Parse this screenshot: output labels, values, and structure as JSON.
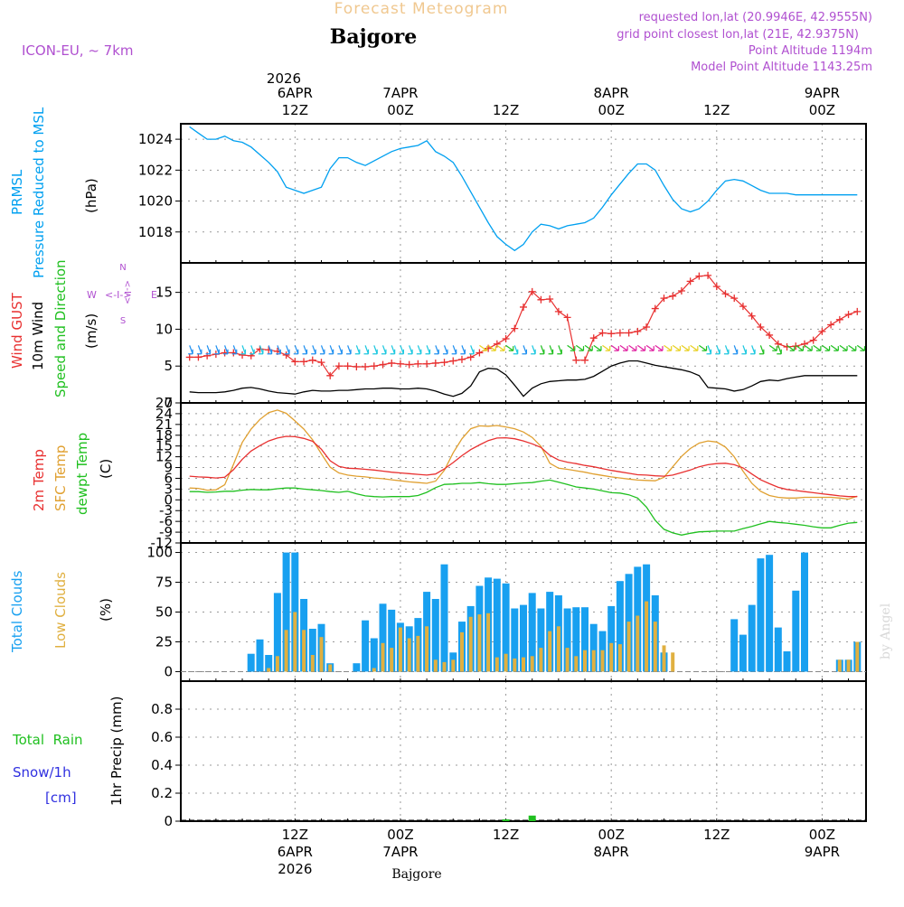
{
  "header": {
    "product": "Forecast Meteogram",
    "location": "Bajgore",
    "model": "ICON-EU, ~ 7km",
    "requested": "requested lon,lat (20.9946E, 42.9555N)",
    "grid_point": "grid point closest lon,lat (21E, 42.9375N)",
    "point_altitude": "Point Altitude 1194m",
    "model_altitude": "Model Point Altitude 1143.25m"
  },
  "time_axis": {
    "top_year": "2026",
    "top_labels": [
      {
        "t": 12,
        "l1": "6APR",
        "l2": "12Z"
      },
      {
        "t": 24,
        "l1": "7APR",
        "l2": "00Z"
      },
      {
        "t": 36,
        "l1": "",
        "l2": "12Z"
      },
      {
        "t": 48,
        "l1": "8APR",
        "l2": "00Z"
      },
      {
        "t": 60,
        "l1": "",
        "l2": "12Z"
      },
      {
        "t": 72,
        "l1": "9APR",
        "l2": "00Z"
      }
    ],
    "bottom_labels": [
      {
        "t": 12,
        "l1": "12Z",
        "l2": "6APR",
        "l3": "2026"
      },
      {
        "t": 24,
        "l1": "00Z",
        "l2": "7APR",
        "l3": ""
      },
      {
        "t": 36,
        "l1": "12Z",
        "l2": "",
        "l3": ""
      },
      {
        "t": 48,
        "l1": "00Z",
        "l2": "8APR",
        "l3": ""
      },
      {
        "t": 60,
        "l1": "12Z",
        "l2": "",
        "l3": ""
      },
      {
        "t": 72,
        "l1": "00Z",
        "l2": "9APR",
        "l3": ""
      }
    ],
    "footer_label": "Bajgore",
    "credit": "by Angel"
  },
  "panel_labels": {
    "pressure": {
      "label1": "PRMSL",
      "label2": "Pressure Reduced to MSL",
      "unit": "(hPa)"
    },
    "wind": {
      "gust": "Wind GUST",
      "wind10": "10m Wind",
      "dir": "Speed and Direction",
      "unit": "(m/s)",
      "compass_n": "N",
      "compass_w": "W",
      "compass_e": "E",
      "compass_s": "S",
      "compass_ns": "<-I->"
    },
    "temp": {
      "t2m": "2m Temp",
      "sfc": "SFC Temp",
      "dew": "dewpt Temp",
      "unit": "(C)"
    },
    "clouds": {
      "total": "Total Clouds",
      "low": "Low Clouds",
      "unit": "(%)"
    },
    "precip": {
      "rain": "Total  Rain",
      "snow": "Snow/1h",
      "snow_unit": "[cm]",
      "unit": "1hr Precip (mm)"
    }
  },
  "colors": {
    "pressure": "#00a0f0",
    "gust": "#e83030",
    "wind": "#000000",
    "t2m": "#e83030",
    "sfc": "#e0a030",
    "dew": "#20c020",
    "total_clouds": "#18a0f0",
    "low_clouds": "#e0b040",
    "rain": "#20c020",
    "snow": "#3030e0",
    "header_purple": "#b050d0",
    "header_gold": "#f0c890"
  },
  "chart_data": [
    {
      "type": "line",
      "title": "PRMSL Pressure Reduced to MSL",
      "ylabel": "(hPa)",
      "ylim": [
        1016,
        1025
      ],
      "yticks": [
        1018,
        1020,
        1022,
        1024
      ],
      "xlim": [
        -1,
        78
      ],
      "x": [
        0,
        1,
        2,
        3,
        4,
        5,
        6,
        7,
        8,
        9,
        10,
        11,
        12,
        13,
        14,
        15,
        16,
        17,
        18,
        19,
        20,
        21,
        22,
        23,
        24,
        25,
        26,
        27,
        28,
        29,
        30,
        31,
        32,
        33,
        34,
        35,
        36,
        37,
        38,
        39,
        40,
        41,
        42,
        43,
        44,
        45,
        46,
        47,
        48,
        49,
        50,
        51,
        52,
        53,
        54,
        55,
        56,
        57,
        58,
        59,
        60,
        61,
        62,
        63,
        64,
        65,
        66,
        67,
        68,
        69,
        70,
        71,
        72,
        73,
        74,
        75,
        76
      ],
      "series": [
        {
          "name": "PRMSL",
          "values": [
            1024.8,
            1024.4,
            1024.0,
            1024.0,
            1024.2,
            1023.9,
            1023.8,
            1023.5,
            1023.0,
            1022.5,
            1021.9,
            1020.9,
            1020.7,
            1020.5,
            1020.7,
            1020.9,
            1022.1,
            1022.8,
            1022.8,
            1022.5,
            1022.3,
            1022.6,
            1022.9,
            1023.2,
            1023.4,
            1023.5,
            1023.6,
            1023.9,
            1023.2,
            1022.9,
            1022.5,
            1021.6,
            1020.6,
            1019.6,
            1018.6,
            1017.7,
            1017.2,
            1016.8,
            1017.2,
            1018.0,
            1018.5,
            1018.4,
            1018.2,
            1018.4,
            1018.5,
            1018.6,
            1018.9,
            1019.6,
            1020.4,
            1021.1,
            1021.8,
            1022.4,
            1022.4,
            1022.0,
            1021.0,
            1020.1,
            1019.5,
            1019.3,
            1019.5,
            1020.0,
            1020.7,
            1021.3,
            1021.4,
            1021.3,
            1021.0,
            1020.7,
            1020.5,
            1020.5,
            1020.5,
            1020.4,
            1020.4,
            1020.4,
            1020.4,
            1020.4,
            1020.4,
            1020.4,
            1020.4
          ]
        }
      ]
    },
    {
      "type": "line",
      "title": "Wind GUST / 10m Wind Speed and Direction",
      "ylabel": "(m/s)",
      "ylim": [
        0,
        19
      ],
      "yticks": [
        0,
        5,
        10,
        15
      ],
      "x": [
        0,
        1,
        2,
        3,
        4,
        5,
        6,
        7,
        8,
        9,
        10,
        11,
        12,
        13,
        14,
        15,
        16,
        17,
        18,
        19,
        20,
        21,
        22,
        23,
        24,
        25,
        26,
        27,
        28,
        29,
        30,
        31,
        32,
        33,
        34,
        35,
        36,
        37,
        38,
        39,
        40,
        41,
        42,
        43,
        44,
        45,
        46,
        47,
        48,
        49,
        50,
        51,
        52,
        53,
        54,
        55,
        56,
        57,
        58,
        59,
        60,
        61,
        62,
        63,
        64,
        65,
        66,
        67,
        68,
        69,
        70,
        71,
        72,
        73,
        74,
        75,
        76
      ],
      "series": [
        {
          "name": "Wind GUST",
          "values": [
            6.2,
            6.2,
            6.4,
            6.6,
            6.8,
            6.8,
            6.5,
            6.4,
            7.3,
            7.2,
            7.0,
            6.5,
            5.6,
            5.6,
            5.8,
            5.5,
            3.7,
            5.0,
            5.0,
            4.9,
            4.9,
            5.0,
            5.2,
            5.4,
            5.3,
            5.2,
            5.3,
            5.3,
            5.4,
            5.5,
            5.7,
            5.9,
            6.2,
            6.8,
            7.4,
            8.0,
            8.7,
            10.1,
            13.0,
            15.1,
            14.0,
            14.1,
            12.4,
            11.6,
            5.8,
            5.8,
            8.8,
            9.5,
            9.4,
            9.5,
            9.5,
            9.7,
            10.3,
            12.8,
            14.2,
            14.5,
            15.2,
            16.5,
            17.2,
            17.3,
            15.8,
            14.8,
            14.2,
            13.1,
            11.8,
            10.3,
            9.2,
            8.0,
            7.6,
            7.7,
            8.0,
            8.5,
            9.7,
            10.6,
            11.3,
            12.0,
            12.4
          ]
        },
        {
          "name": "10m Wind",
          "values": [
            1.5,
            1.4,
            1.4,
            1.4,
            1.5,
            1.7,
            2.0,
            2.1,
            1.9,
            1.6,
            1.4,
            1.3,
            1.2,
            1.5,
            1.7,
            1.6,
            1.6,
            1.7,
            1.7,
            1.8,
            1.9,
            1.9,
            2.0,
            2.0,
            1.9,
            1.9,
            2.0,
            1.9,
            1.6,
            1.2,
            0.9,
            1.3,
            2.3,
            4.2,
            4.7,
            4.6,
            3.8,
            2.4,
            0.9,
            2.0,
            2.6,
            2.9,
            3.0,
            3.1,
            3.1,
            3.2,
            3.6,
            4.3,
            5.0,
            5.4,
            5.7,
            5.7,
            5.4,
            5.1,
            4.9,
            4.7,
            4.5,
            4.2,
            3.7,
            2.1,
            2.0,
            1.9,
            1.6,
            1.8,
            2.3,
            2.9,
            3.1,
            3.0,
            3.3,
            3.5,
            3.7,
            3.7,
            3.7,
            3.7,
            3.7,
            3.7,
            3.7
          ]
        }
      ]
    },
    {
      "type": "line",
      "title": "2m Temp / SFC Temp / dewpt Temp",
      "ylabel": "(C)",
      "ylim": [
        -12,
        27
      ],
      "yticks": [
        -12,
        -9,
        -6,
        -3,
        0,
        3,
        6,
        9,
        12,
        15,
        18,
        21,
        24,
        27
      ],
      "x": [
        0,
        1,
        2,
        3,
        4,
        5,
        6,
        7,
        8,
        9,
        10,
        11,
        12,
        13,
        14,
        15,
        16,
        17,
        18,
        19,
        20,
        21,
        22,
        23,
        24,
        25,
        26,
        27,
        28,
        29,
        30,
        31,
        32,
        33,
        34,
        35,
        36,
        37,
        38,
        39,
        40,
        41,
        42,
        43,
        44,
        45,
        46,
        47,
        48,
        49,
        50,
        51,
        52,
        53,
        54,
        55,
        56,
        57,
        58,
        59,
        60,
        61,
        62,
        63,
        64,
        65,
        66,
        67,
        68,
        69,
        70,
        71,
        72,
        73,
        74,
        75,
        76
      ],
      "series": [
        {
          "name": "2m Temp",
          "values": [
            6.6,
            6.4,
            6.3,
            6.1,
            6.3,
            8.4,
            11.3,
            13.6,
            15.1,
            16.4,
            17.2,
            17.7,
            17.6,
            17.1,
            16.3,
            14.1,
            10.9,
            9.3,
            8.8,
            8.7,
            8.5,
            8.3,
            8.0,
            7.7,
            7.5,
            7.3,
            7.1,
            6.9,
            7.2,
            8.6,
            10.4,
            12.3,
            14.0,
            15.3,
            16.5,
            17.2,
            17.3,
            17.0,
            16.4,
            15.6,
            14.6,
            12.4,
            11.1,
            10.5,
            10.1,
            9.6,
            9.2,
            8.7,
            8.2,
            7.8,
            7.4,
            7.0,
            6.9,
            6.7,
            6.6,
            6.9,
            7.6,
            8.3,
            9.2,
            9.8,
            10.1,
            10.2,
            9.8,
            8.9,
            7.2,
            5.6,
            4.5,
            3.5,
            2.9,
            2.6,
            2.3,
            2.0,
            1.7,
            1.4,
            1.1,
            0.9,
            0.9
          ]
        },
        {
          "name": "SFC Temp",
          "values": [
            3.3,
            3.2,
            2.7,
            2.8,
            4.2,
            9.9,
            16.0,
            19.7,
            22.4,
            24.3,
            25.0,
            24.1,
            22.0,
            19.7,
            16.7,
            12.8,
            9.1,
            7.5,
            6.9,
            6.6,
            6.4,
            6.1,
            5.9,
            5.6,
            5.3,
            5.0,
            4.8,
            4.6,
            5.2,
            8.2,
            13.1,
            17.0,
            19.8,
            20.6,
            20.5,
            20.7,
            20.3,
            19.8,
            18.9,
            17.4,
            14.9,
            10.2,
            8.8,
            8.5,
            8.1,
            7.7,
            7.2,
            6.8,
            6.4,
            6.1,
            5.8,
            5.5,
            5.4,
            5.3,
            6.3,
            9.2,
            12.1,
            14.3,
            15.8,
            16.4,
            16.1,
            14.7,
            12.0,
            8.0,
            4.6,
            2.4,
            1.2,
            0.7,
            0.5,
            0.5,
            0.7,
            0.7,
            0.7,
            0.7,
            0.5,
            0.2,
            1.0
          ]
        },
        {
          "name": "dewpt Temp",
          "values": [
            2.3,
            2.3,
            2.1,
            2.2,
            2.4,
            2.4,
            2.7,
            2.9,
            2.8,
            2.8,
            3.1,
            3.3,
            3.3,
            3.0,
            2.8,
            2.6,
            2.3,
            2.1,
            2.4,
            1.7,
            1.1,
            0.9,
            0.8,
            0.9,
            0.9,
            0.9,
            1.2,
            2.1,
            3.4,
            4.3,
            4.4,
            4.6,
            4.6,
            4.8,
            4.5,
            4.3,
            4.3,
            4.5,
            4.7,
            4.8,
            5.2,
            5.5,
            4.9,
            4.3,
            3.6,
            3.3,
            3.0,
            2.5,
            2.0,
            1.9,
            1.4,
            0.5,
            -2.0,
            -5.7,
            -8.2,
            -9.2,
            -9.8,
            -9.3,
            -8.9,
            -8.8,
            -8.7,
            -8.7,
            -8.7,
            -8.0,
            -7.4,
            -6.7,
            -6.0,
            -6.3,
            -6.5,
            -6.8,
            -7.1,
            -7.5,
            -7.8,
            -7.8,
            -7.1,
            -6.5,
            -6.3
          ]
        }
      ]
    },
    {
      "type": "bar",
      "title": "Total Clouds / Low Clouds",
      "ylabel": "(%)",
      "ylim": [
        -8,
        108
      ],
      "yticks": [
        0,
        25,
        50,
        75,
        100
      ],
      "x": [
        0,
        1,
        2,
        3,
        4,
        5,
        6,
        7,
        8,
        9,
        10,
        11,
        12,
        13,
        14,
        15,
        16,
        17,
        18,
        19,
        20,
        21,
        22,
        23,
        24,
        25,
        26,
        27,
        28,
        29,
        30,
        31,
        32,
        33,
        34,
        35,
        36,
        37,
        38,
        39,
        40,
        41,
        42,
        43,
        44,
        45,
        46,
        47,
        48,
        49,
        50,
        51,
        52,
        53,
        54,
        55,
        56,
        57,
        58,
        59,
        60,
        61,
        62,
        63,
        64,
        65,
        66,
        67,
        68,
        69,
        70,
        71,
        72,
        73,
        74,
        75,
        76
      ],
      "series": [
        {
          "name": "Total Clouds",
          "values": [
            0,
            0,
            0,
            0,
            0,
            0,
            0,
            15,
            27,
            14,
            66,
            100,
            100,
            61,
            36,
            40,
            7,
            0,
            0,
            7,
            43,
            28,
            57,
            52,
            41,
            38,
            45,
            67,
            61,
            90,
            16,
            42,
            55,
            72,
            79,
            78,
            74,
            53,
            56,
            66,
            53,
            67,
            64,
            53,
            54,
            54,
            40,
            34,
            55,
            76,
            82,
            88,
            90,
            64,
            16,
            0,
            0,
            0,
            0,
            0,
            0,
            0,
            44,
            31,
            56,
            95,
            98,
            37,
            17,
            68,
            100,
            0,
            0,
            0,
            10,
            10,
            25
          ]
        },
        {
          "name": "Low Clouds",
          "values": [
            0,
            0,
            0,
            0,
            0,
            0,
            0,
            0,
            0,
            3,
            13,
            35,
            50,
            35,
            14,
            29,
            6,
            0,
            0,
            0,
            0,
            3,
            24,
            20,
            37,
            28,
            30,
            38,
            10,
            8,
            10,
            33,
            46,
            48,
            49,
            12,
            15,
            11,
            12,
            13,
            20,
            34,
            38,
            20,
            13,
            18,
            18,
            18,
            24,
            23,
            42,
            47,
            59,
            42,
            22,
            16,
            0,
            0,
            0,
            0,
            0,
            0,
            0,
            0,
            0,
            0,
            0,
            0,
            0,
            0,
            0,
            0,
            0,
            0,
            10,
            10,
            25
          ]
        }
      ]
    },
    {
      "type": "bar",
      "title": "1hr Precip",
      "ylabel": "1hr Precip (mm)",
      "ylim": [
        0,
        1.0
      ],
      "yticks": [
        0,
        0.2,
        0.4,
        0.6,
        0.8
      ],
      "ytick_labels": [
        "0",
        "0.2",
        "0.4",
        "0.6",
        "0.8"
      ],
      "series": [
        {
          "name": "Total Rain",
          "x": [
            36,
            39
          ],
          "values": [
            0.01,
            0.04
          ]
        },
        {
          "name": "Snow/1h",
          "x": [],
          "values": []
        }
      ]
    }
  ]
}
